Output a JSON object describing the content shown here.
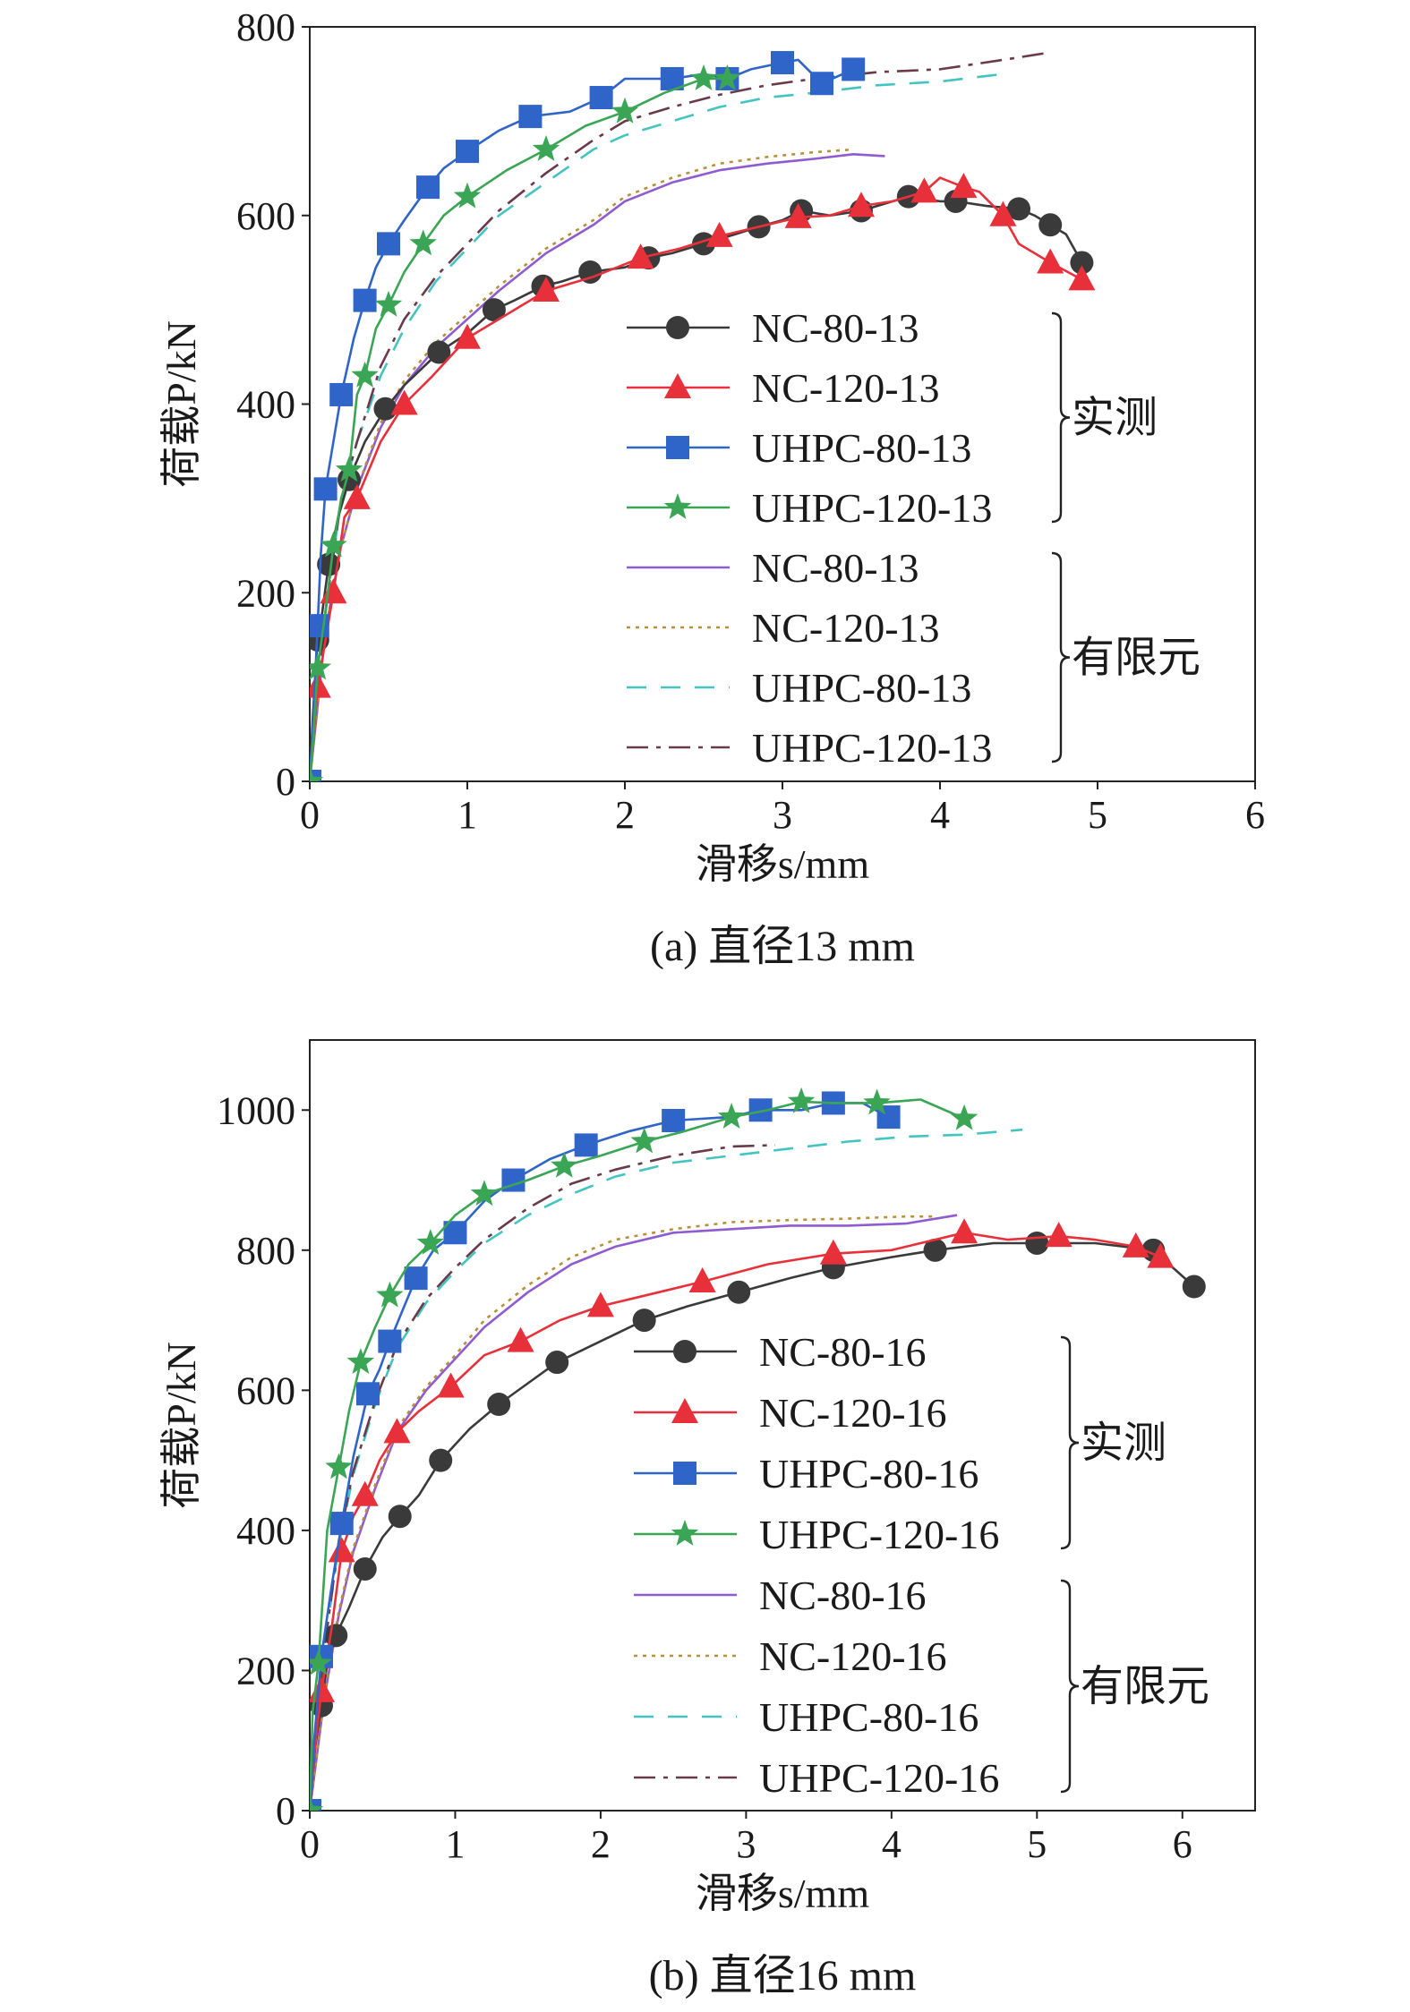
{
  "chart_data": [
    {
      "type": "line",
      "caption": "(a) 直径13 mm",
      "xlabel": "滑移s/mm",
      "ylabel": "荷载P/kN",
      "xlim": [
        0,
        6
      ],
      "ylim": [
        0,
        800
      ],
      "xticks": [
        0,
        1,
        2,
        3,
        4,
        5,
        6
      ],
      "yticks": [
        0,
        200,
        400,
        600,
        800
      ],
      "legend_position": "center-right",
      "legend_groups": [
        {
          "label": "实测",
          "series_count": 4
        },
        {
          "label": "有限元",
          "series_count": 4
        }
      ],
      "series": [
        {
          "name": "NC-80-13",
          "group": "实测",
          "color": "#3a3a3a",
          "marker": "circle",
          "line": "solid",
          "x": [
            0,
            0.02,
            0.05,
            0.08,
            0.12,
            0.18,
            0.25,
            0.35,
            0.48,
            0.6,
            0.82,
            1.0,
            1.17,
            1.3,
            1.48,
            1.6,
            1.78,
            2.0,
            2.15,
            2.3,
            2.5,
            2.7,
            2.85,
            3.0,
            3.12,
            3.3,
            3.5,
            3.7,
            3.8,
            4.0,
            4.1,
            4.3,
            4.5,
            4.6,
            4.7,
            4.8,
            4.9
          ],
          "y": [
            0,
            70,
            150,
            180,
            230,
            280,
            320,
            360,
            395,
            420,
            455,
            475,
            500,
            510,
            525,
            530,
            540,
            545,
            555,
            560,
            570,
            580,
            588,
            595,
            605,
            600,
            605,
            615,
            620,
            615,
            615,
            610,
            607,
            600,
            590,
            580,
            550
          ],
          "marker_every": 2
        },
        {
          "name": "NC-120-13",
          "group": "实测",
          "color": "#e8303a",
          "marker": "triangle",
          "line": "solid",
          "x": [
            0,
            0.02,
            0.05,
            0.1,
            0.15,
            0.22,
            0.3,
            0.45,
            0.6,
            0.78,
            1.0,
            1.25,
            1.5,
            1.8,
            2.1,
            2.35,
            2.6,
            2.9,
            3.1,
            3.3,
            3.5,
            3.7,
            3.9,
            4.0,
            4.15,
            4.25,
            4.4,
            4.5,
            4.7,
            4.9
          ],
          "y": [
            0,
            40,
            100,
            150,
            200,
            280,
            300,
            360,
            400,
            430,
            470,
            495,
            520,
            535,
            555,
            565,
            578,
            590,
            598,
            600,
            610,
            615,
            625,
            640,
            630,
            625,
            600,
            570,
            550,
            532
          ],
          "marker_every": 2
        },
        {
          "name": "UHPC-80-13",
          "group": "实测",
          "color": "#2f64c8",
          "marker": "square",
          "line": "solid",
          "x": [
            0,
            0.02,
            0.05,
            0.07,
            0.1,
            0.15,
            0.2,
            0.28,
            0.35,
            0.42,
            0.5,
            0.6,
            0.75,
            0.85,
            1.0,
            1.2,
            1.4,
            1.65,
            1.85,
            2.0,
            2.3,
            2.5,
            2.65,
            2.8,
            3.0,
            3.1,
            3.25,
            3.45
          ],
          "y": [
            0,
            60,
            165,
            240,
            310,
            360,
            410,
            470,
            510,
            545,
            570,
            595,
            630,
            650,
            668,
            690,
            705,
            710,
            725,
            745,
            745,
            750,
            745,
            755,
            762,
            765,
            740,
            755
          ],
          "marker_every": 2
        },
        {
          "name": "UHPC-120-13",
          "group": "实测",
          "color": "#3aa655",
          "marker": "star",
          "line": "solid",
          "x": [
            0,
            0.02,
            0.05,
            0.1,
            0.15,
            0.2,
            0.25,
            0.3,
            0.35,
            0.42,
            0.5,
            0.6,
            0.72,
            0.85,
            1.0,
            1.25,
            1.5,
            1.75,
            2.0,
            2.25,
            2.5,
            2.65
          ],
          "y": [
            0,
            40,
            120,
            180,
            250,
            300,
            330,
            410,
            430,
            480,
            505,
            540,
            570,
            600,
            620,
            648,
            670,
            695,
            710,
            730,
            745,
            745
          ],
          "marker_every": 2
        },
        {
          "name": "NC-80-13",
          "group": "有限元",
          "color": "#8f5bd0",
          "marker": "none",
          "line": "solid",
          "x": [
            0,
            0.05,
            0.1,
            0.2,
            0.3,
            0.45,
            0.6,
            0.8,
            1.0,
            1.2,
            1.5,
            1.8,
            2.0,
            2.3,
            2.6,
            2.9,
            3.2,
            3.45,
            3.65
          ],
          "y": [
            0,
            80,
            160,
            250,
            310,
            375,
            420,
            460,
            490,
            520,
            560,
            590,
            615,
            635,
            648,
            655,
            660,
            665,
            663
          ]
        },
        {
          "name": "NC-120-13",
          "group": "有限元",
          "color": "#b8903a",
          "marker": "none",
          "line": "dotted",
          "x": [
            0,
            0.05,
            0.1,
            0.2,
            0.3,
            0.45,
            0.6,
            0.8,
            1.0,
            1.2,
            1.5,
            1.8,
            2.0,
            2.3,
            2.6,
            2.9,
            3.2,
            3.45
          ],
          "y": [
            0,
            80,
            160,
            250,
            310,
            380,
            425,
            465,
            495,
            525,
            565,
            595,
            620,
            640,
            655,
            662,
            667,
            670
          ]
        },
        {
          "name": "UHPC-80-13",
          "group": "有限元",
          "color": "#44c4c0",
          "marker": "none",
          "line": "dashed",
          "x": [
            0,
            0.05,
            0.1,
            0.2,
            0.3,
            0.45,
            0.6,
            0.8,
            1.0,
            1.2,
            1.5,
            1.8,
            2.0,
            2.3,
            2.6,
            2.9,
            3.2,
            3.6,
            4.0,
            4.4
          ],
          "y": [
            0,
            100,
            180,
            300,
            360,
            430,
            480,
            530,
            565,
            600,
            635,
            670,
            685,
            700,
            715,
            725,
            730,
            738,
            742,
            750
          ]
        },
        {
          "name": "UHPC-120-13",
          "group": "有限元",
          "color": "#6b3a4a",
          "marker": "none",
          "line": "dashdot",
          "x": [
            0,
            0.05,
            0.1,
            0.2,
            0.3,
            0.45,
            0.6,
            0.8,
            1.0,
            1.2,
            1.5,
            1.8,
            2.0,
            2.3,
            2.6,
            2.9,
            3.2,
            3.6,
            4.0,
            4.4,
            4.7
          ],
          "y": [
            0,
            100,
            180,
            300,
            360,
            440,
            490,
            535,
            570,
            605,
            645,
            680,
            700,
            715,
            728,
            738,
            745,
            752,
            755,
            765,
            773
          ]
        }
      ]
    },
    {
      "type": "line",
      "caption": "(b) 直径16 mm",
      "xlabel": "滑移s/mm",
      "ylabel": "荷载P/kN",
      "xlim": [
        0,
        6.5
      ],
      "ylim": [
        0,
        1100
      ],
      "xticks": [
        0,
        1,
        2,
        3,
        4,
        5,
        6
      ],
      "yticks": [
        0,
        200,
        400,
        600,
        800,
        1000
      ],
      "legend_position": "center-right",
      "legend_groups": [
        {
          "label": "实测",
          "series_count": 4
        },
        {
          "label": "有限元",
          "series_count": 4
        }
      ],
      "series": [
        {
          "name": "NC-80-16",
          "group": "实测",
          "color": "#3a3a3a",
          "marker": "circle",
          "line": "solid",
          "x": [
            0,
            0.03,
            0.08,
            0.12,
            0.18,
            0.27,
            0.38,
            0.5,
            0.62,
            0.75,
            0.9,
            1.1,
            1.3,
            1.5,
            1.7,
            2.0,
            2.3,
            2.6,
            2.95,
            3.3,
            3.6,
            4.0,
            4.3,
            4.7,
            5.0,
            5.4,
            5.8,
            6.08
          ],
          "y": [
            0,
            80,
            150,
            210,
            250,
            290,
            345,
            390,
            420,
            450,
            500,
            545,
            580,
            610,
            640,
            670,
            700,
            720,
            740,
            760,
            775,
            790,
            800,
            810,
            810,
            810,
            800,
            748
          ],
          "marker_every": 2
        },
        {
          "name": "NC-120-16",
          "group": "实测",
          "color": "#e8303a",
          "marker": "triangle",
          "line": "solid",
          "x": [
            0,
            0.03,
            0.08,
            0.15,
            0.22,
            0.3,
            0.38,
            0.48,
            0.6,
            0.75,
            0.97,
            1.2,
            1.45,
            1.72,
            2.0,
            2.3,
            2.7,
            3.15,
            3.6,
            4.0,
            4.5,
            4.8,
            5.15,
            5.4,
            5.68,
            5.85
          ],
          "y": [
            0,
            80,
            170,
            260,
            370,
            420,
            450,
            500,
            540,
            570,
            605,
            650,
            670,
            700,
            720,
            735,
            755,
            780,
            795,
            800,
            825,
            815,
            820,
            815,
            805,
            790
          ],
          "marker_every": 2
        },
        {
          "name": "UHPC-80-16",
          "group": "实测",
          "color": "#2f64c8",
          "marker": "square",
          "line": "solid",
          "x": [
            0,
            0.03,
            0.08,
            0.15,
            0.22,
            0.3,
            0.4,
            0.48,
            0.55,
            0.65,
            0.73,
            0.85,
            1.0,
            1.2,
            1.4,
            1.65,
            1.9,
            2.2,
            2.5,
            2.88,
            3.1,
            3.38,
            3.6,
            3.8,
            3.98
          ],
          "y": [
            0,
            100,
            220,
            320,
            410,
            505,
            595,
            630,
            670,
            720,
            760,
            800,
            825,
            870,
            900,
            930,
            950,
            970,
            985,
            990,
            1000,
            1000,
            1010,
            1010,
            990
          ],
          "marker_every": 2
        },
        {
          "name": "UHPC-120-16",
          "group": "实测",
          "color": "#3aa655",
          "marker": "star",
          "line": "solid",
          "x": [
            0,
            0.02,
            0.06,
            0.12,
            0.2,
            0.27,
            0.35,
            0.45,
            0.55,
            0.68,
            0.83,
            1.0,
            1.2,
            1.5,
            1.75,
            2.0,
            2.3,
            2.58,
            2.9,
            3.15,
            3.38,
            3.6,
            3.9,
            4.2,
            4.5
          ],
          "y": [
            0,
            140,
            210,
            400,
            490,
            570,
            640,
            690,
            735,
            780,
            810,
            850,
            880,
            900,
            920,
            935,
            955,
            970,
            990,
            1000,
            1012,
            1010,
            1010,
            1015,
            988
          ],
          "marker_every": 2
        },
        {
          "name": "NC-80-16",
          "group": "有限元",
          "color": "#8f5bd0",
          "marker": "none",
          "line": "solid",
          "x": [
            0,
            0.05,
            0.1,
            0.2,
            0.3,
            0.45,
            0.6,
            0.8,
            1.0,
            1.2,
            1.5,
            1.8,
            2.1,
            2.5,
            2.9,
            3.3,
            3.7,
            4.1,
            4.45
          ],
          "y": [
            0,
            80,
            160,
            280,
            370,
            460,
            540,
            600,
            645,
            690,
            740,
            780,
            805,
            825,
            830,
            835,
            835,
            838,
            850
          ]
        },
        {
          "name": "NC-120-16",
          "group": "有限元",
          "color": "#b8903a",
          "marker": "none",
          "line": "dotted",
          "x": [
            0,
            0.05,
            0.1,
            0.2,
            0.3,
            0.45,
            0.6,
            0.8,
            1.0,
            1.2,
            1.5,
            1.8,
            2.1,
            2.5,
            2.9,
            3.3,
            3.7,
            4.1,
            4.3
          ],
          "y": [
            0,
            80,
            165,
            285,
            375,
            465,
            545,
            605,
            650,
            700,
            750,
            790,
            815,
            830,
            840,
            843,
            845,
            848,
            848
          ]
        },
        {
          "name": "UHPC-80-16",
          "group": "有限元",
          "color": "#44c4c0",
          "marker": "none",
          "line": "dashed",
          "x": [
            0,
            0.05,
            0.1,
            0.2,
            0.3,
            0.45,
            0.6,
            0.8,
            1.0,
            1.2,
            1.5,
            1.8,
            2.1,
            2.5,
            2.9,
            3.3,
            3.7,
            4.1,
            4.5,
            4.9
          ],
          "y": [
            0,
            120,
            230,
            380,
            480,
            580,
            660,
            725,
            770,
            810,
            850,
            880,
            905,
            925,
            935,
            945,
            955,
            962,
            965,
            972
          ]
        },
        {
          "name": "UHPC-120-16",
          "group": "有限元",
          "color": "#6b3a4a",
          "marker": "none",
          "line": "dashdot",
          "x": [
            0,
            0.05,
            0.1,
            0.2,
            0.3,
            0.45,
            0.6,
            0.8,
            1.0,
            1.2,
            1.5,
            1.8,
            2.1,
            2.5,
            2.9,
            3.2
          ],
          "y": [
            0,
            120,
            230,
            385,
            485,
            585,
            665,
            730,
            775,
            815,
            860,
            895,
            915,
            935,
            948,
            950
          ]
        }
      ]
    }
  ]
}
